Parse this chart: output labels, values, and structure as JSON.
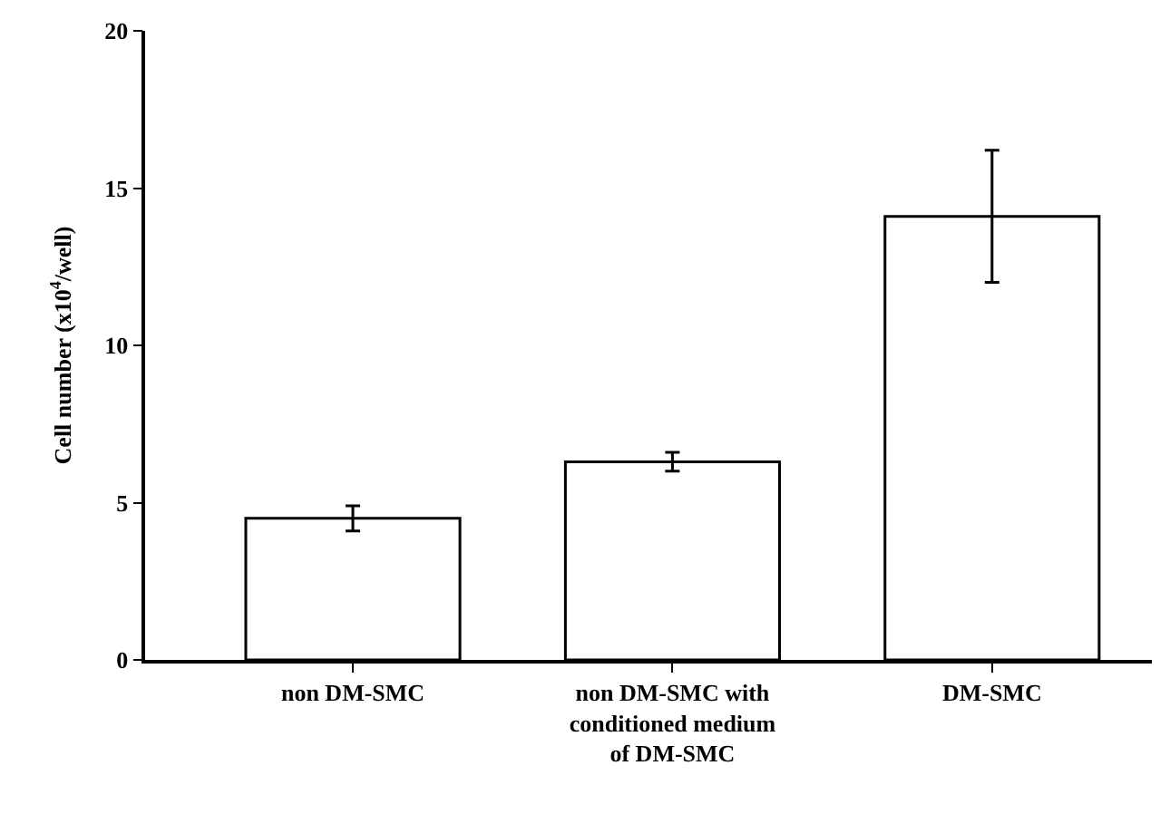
{
  "chart_data": {
    "type": "bar",
    "ylabel": "Cell number (x10$^{4}$/well)",
    "categories": [
      "non DM-SMC",
      "non DM-SMC with\nconditioned medium\nof DM-SMC",
      "DM-SMC"
    ],
    "series": [
      {
        "color": "#ffffff",
        "values": [
          4.5,
          6.3,
          14.1
        ],
        "errors": [
          0.4,
          0.3,
          2.1
        ]
      }
    ],
    "ylim": [
      0,
      20
    ],
    "yticks": [
      0,
      5,
      10,
      15,
      20
    ]
  }
}
